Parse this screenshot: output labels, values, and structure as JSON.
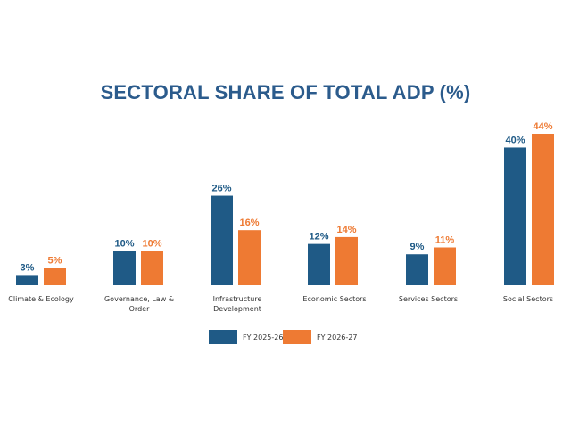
{
  "chart_data": {
    "type": "bar",
    "title": "SECTORAL SHARE OF TOTAL ADP (%)",
    "categories": [
      [
        "Climate & Ecology"
      ],
      [
        "Governance, Law &",
        "Order"
      ],
      [
        "Infrastructure",
        "Development"
      ],
      [
        "Economic Sectors"
      ],
      [
        "Services Sectors"
      ],
      [
        "Social Sectors"
      ]
    ],
    "series": [
      {
        "name": "FY 2025-26",
        "color": "#1f5a86",
        "values": [
          3,
          10,
          26,
          12,
          9,
          40
        ],
        "labels": [
          "3%",
          "10%",
          "26%",
          "12%",
          "9%",
          "40%"
        ]
      },
      {
        "name": "FY 2026-27",
        "color": "#ee7a33",
        "values": [
          5,
          10,
          16,
          14,
          11,
          44
        ],
        "labels": [
          "5%",
          "10%",
          "16%",
          "14%",
          "11%",
          "44%"
        ]
      }
    ],
    "ylim": [
      0,
      44
    ],
    "grid": false,
    "legend_position": "bottom"
  }
}
